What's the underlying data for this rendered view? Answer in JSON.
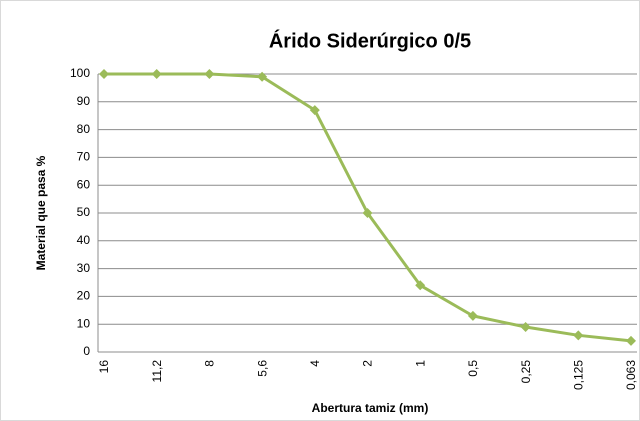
{
  "chart_data": {
    "type": "line",
    "title": "Árido Siderúrgico 0/5",
    "x_label": "Abertura tamiz (mm)",
    "y_label": "Material que pasa %",
    "categories": [
      "16",
      "11,2",
      "8",
      "5,6",
      "4",
      "2",
      "1",
      "0,5",
      "0,25",
      "0,125",
      "0,063"
    ],
    "series": [
      {
        "color": "#9bbb59",
        "values": [
          100,
          100,
          100,
          99,
          87,
          50,
          24,
          13,
          9,
          6,
          4
        ]
      }
    ],
    "ylim": [
      0,
      100
    ],
    "yticks": [
      0,
      10,
      20,
      30,
      40,
      50,
      60,
      70,
      80,
      90,
      100
    ],
    "grid": true
  }
}
